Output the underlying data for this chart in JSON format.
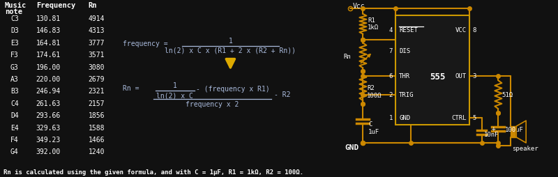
{
  "bg": "#111111",
  "wire": "#cc8800",
  "text": "#ffffff",
  "fc": "#aabbdd",
  "arrow_c": "#ddaa00",
  "chip_border": "#cc9900",
  "notes": [
    "C3",
    "D3",
    "E3",
    "F3",
    "G3",
    "A3",
    "B3",
    "C4",
    "D4",
    "E4",
    "F4",
    "G4"
  ],
  "freqs": [
    "130.81",
    "146.83",
    "164.81",
    "174.61",
    "196.00",
    "220.00",
    "246.94",
    "261.63",
    "293.66",
    "329.63",
    "349.23",
    "392.00"
  ],
  "rns": [
    "4914",
    "4313",
    "3777",
    "3571",
    "3080",
    "2679",
    "2321",
    "2157",
    "1856",
    "1588",
    "1466",
    "1240"
  ],
  "footnote": "Rn is calculated using the given formula, and with C = 1μF, R1 = 1kΩ, R2 = 100Ω."
}
